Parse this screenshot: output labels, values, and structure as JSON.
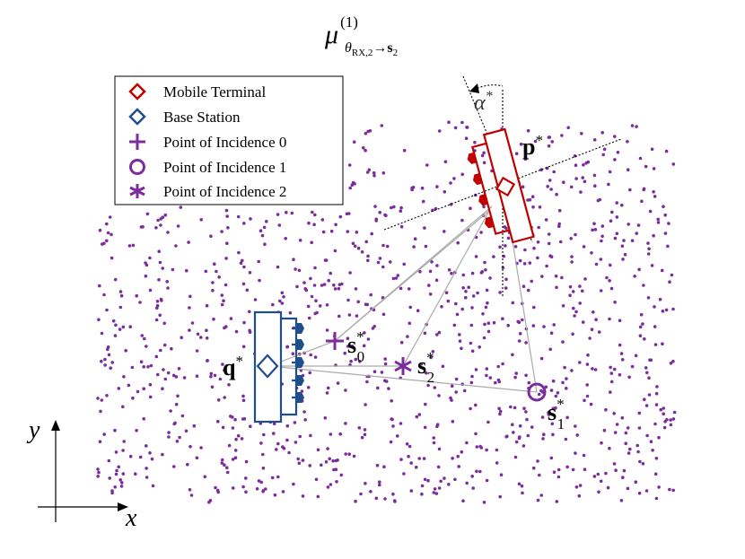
{
  "title": {
    "symbol": "μ",
    "superscript": "(1)",
    "subscript": "θ",
    "subscript_sub": "RX,2",
    "arrow": "→",
    "target": "s",
    "target_sub": "2"
  },
  "legend": [
    "Mobile Terminal",
    "Base Station",
    "Point of Incidence 0",
    "Point of Incidence 1",
    "Point of Incidence 2"
  ],
  "labels": {
    "p": {
      "base": "p",
      "sup": "*"
    },
    "q": {
      "base": "q",
      "sup": "*"
    },
    "alpha": {
      "base": "α",
      "sup": "*"
    },
    "s0": {
      "base": "s",
      "sub": "0",
      "sup": "*"
    },
    "s1": {
      "base": "s",
      "sub": "1",
      "sup": "*"
    },
    "s2": {
      "base": "s",
      "sub": "2",
      "sup": "*"
    }
  },
  "axes": {
    "x": "x",
    "y": "y"
  }
}
